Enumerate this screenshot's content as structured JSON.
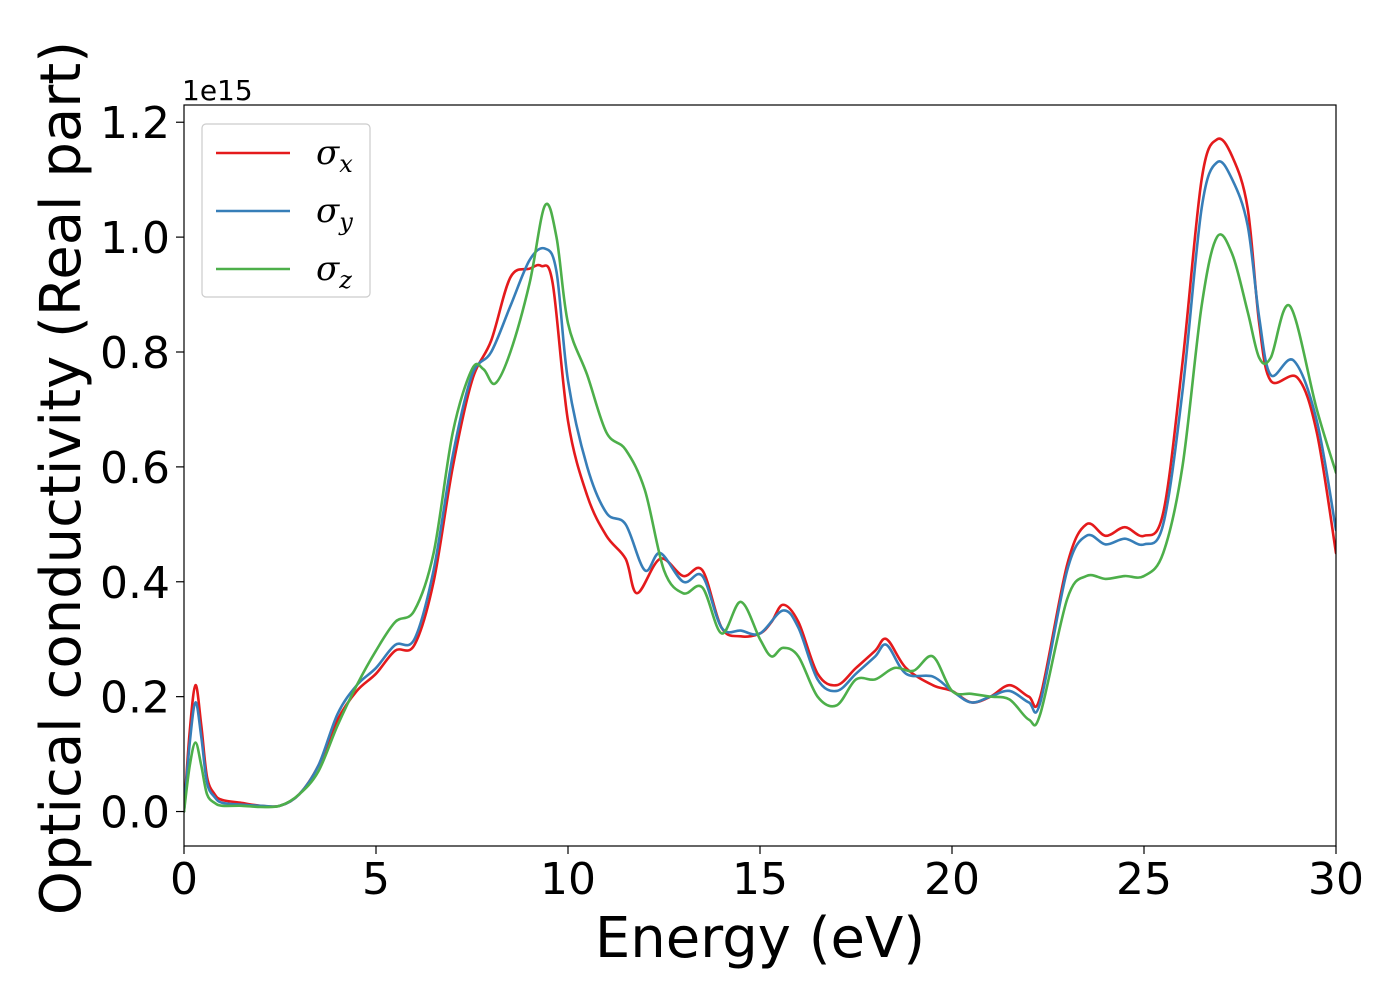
{
  "chart_data": {
    "type": "line",
    "title": "",
    "xlabel": "Energy (eV)",
    "ylabel": "Optical conductivity (Real part)",
    "y_offset_label": "1e15",
    "xlim": [
      0,
      30
    ],
    "ylim": [
      -0.06,
      1.23
    ],
    "xticks": [
      0,
      5,
      10,
      15,
      20,
      25,
      30
    ],
    "xtick_labels": [
      "0",
      "5",
      "10",
      "15",
      "20",
      "25",
      "30"
    ],
    "yticks": [
      0.0,
      0.2,
      0.4,
      0.6,
      0.8,
      1.0,
      1.2
    ],
    "ytick_labels": [
      "0.0",
      "0.2",
      "0.4",
      "0.6",
      "0.8",
      "1.0",
      "1.2"
    ],
    "grid": false,
    "legend_position": "top-left",
    "series": [
      {
        "name": "σx",
        "legend_base": "σ",
        "legend_sub": "x",
        "color": "#e41a1c",
        "points": [
          [
            0,
            0.0
          ],
          [
            0.15,
            0.14
          ],
          [
            0.3,
            0.22
          ],
          [
            0.45,
            0.15
          ],
          [
            0.6,
            0.06
          ],
          [
            0.8,
            0.03
          ],
          [
            1,
            0.02
          ],
          [
            1.5,
            0.015
          ],
          [
            2,
            0.01
          ],
          [
            2.5,
            0.01
          ],
          [
            3,
            0.03
          ],
          [
            3.5,
            0.08
          ],
          [
            4,
            0.16
          ],
          [
            4.5,
            0.21
          ],
          [
            5,
            0.24
          ],
          [
            5.5,
            0.28
          ],
          [
            6,
            0.29
          ],
          [
            6.5,
            0.4
          ],
          [
            7,
            0.6
          ],
          [
            7.5,
            0.75
          ],
          [
            8,
            0.82
          ],
          [
            8.5,
            0.93
          ],
          [
            9,
            0.945
          ],
          [
            9.3,
            0.95
          ],
          [
            9.6,
            0.92
          ],
          [
            10,
            0.68
          ],
          [
            10.5,
            0.55
          ],
          [
            11,
            0.48
          ],
          [
            11.5,
            0.44
          ],
          [
            11.8,
            0.38
          ],
          [
            12.4,
            0.44
          ],
          [
            13,
            0.41
          ],
          [
            13.5,
            0.42
          ],
          [
            14,
            0.32
          ],
          [
            14.5,
            0.305
          ],
          [
            15,
            0.31
          ],
          [
            15.3,
            0.33
          ],
          [
            15.6,
            0.36
          ],
          [
            16,
            0.33
          ],
          [
            16.5,
            0.24
          ],
          [
            17,
            0.22
          ],
          [
            17.5,
            0.25
          ],
          [
            18,
            0.28
          ],
          [
            18.3,
            0.3
          ],
          [
            18.8,
            0.25
          ],
          [
            19.5,
            0.22
          ],
          [
            20,
            0.21
          ],
          [
            20.5,
            0.19
          ],
          [
            21,
            0.2
          ],
          [
            21.5,
            0.22
          ],
          [
            22,
            0.2
          ],
          [
            22.3,
            0.2
          ],
          [
            23,
            0.43
          ],
          [
            23.5,
            0.5
          ],
          [
            24,
            0.48
          ],
          [
            24.5,
            0.495
          ],
          [
            25,
            0.48
          ],
          [
            25.5,
            0.52
          ],
          [
            26,
            0.78
          ],
          [
            26.5,
            1.1
          ],
          [
            26.9,
            1.17
          ],
          [
            27.3,
            1.14
          ],
          [
            27.7,
            1.05
          ],
          [
            28,
            0.85
          ],
          [
            28.3,
            0.75
          ],
          [
            29,
            0.755
          ],
          [
            29.5,
            0.66
          ],
          [
            30,
            0.45
          ]
        ]
      },
      {
        "name": "σy",
        "legend_base": "σ",
        "legend_sub": "y",
        "color": "#377eb8",
        "points": [
          [
            0,
            0.0
          ],
          [
            0.15,
            0.12
          ],
          [
            0.3,
            0.19
          ],
          [
            0.45,
            0.13
          ],
          [
            0.6,
            0.05
          ],
          [
            0.8,
            0.025
          ],
          [
            1,
            0.015
          ],
          [
            1.5,
            0.012
          ],
          [
            2,
            0.01
          ],
          [
            2.5,
            0.01
          ],
          [
            3,
            0.03
          ],
          [
            3.5,
            0.08
          ],
          [
            4,
            0.17
          ],
          [
            4.5,
            0.22
          ],
          [
            5,
            0.25
          ],
          [
            5.5,
            0.29
          ],
          [
            6,
            0.3
          ],
          [
            6.5,
            0.42
          ],
          [
            7,
            0.62
          ],
          [
            7.5,
            0.76
          ],
          [
            8,
            0.8
          ],
          [
            8.5,
            0.88
          ],
          [
            9,
            0.96
          ],
          [
            9.4,
            0.98
          ],
          [
            9.7,
            0.94
          ],
          [
            10,
            0.75
          ],
          [
            10.5,
            0.6
          ],
          [
            11,
            0.52
          ],
          [
            11.5,
            0.5
          ],
          [
            12,
            0.42
          ],
          [
            12.4,
            0.45
          ],
          [
            13,
            0.4
          ],
          [
            13.5,
            0.41
          ],
          [
            14,
            0.32
          ],
          [
            14.5,
            0.315
          ],
          [
            15,
            0.31
          ],
          [
            15.6,
            0.35
          ],
          [
            16,
            0.32
          ],
          [
            16.5,
            0.23
          ],
          [
            17,
            0.21
          ],
          [
            17.5,
            0.24
          ],
          [
            18,
            0.27
          ],
          [
            18.3,
            0.29
          ],
          [
            18.8,
            0.24
          ],
          [
            19.5,
            0.235
          ],
          [
            20,
            0.21
          ],
          [
            20.5,
            0.19
          ],
          [
            21,
            0.2
          ],
          [
            21.5,
            0.21
          ],
          [
            22,
            0.19
          ],
          [
            22.3,
            0.19
          ],
          [
            23,
            0.42
          ],
          [
            23.5,
            0.48
          ],
          [
            24,
            0.465
          ],
          [
            24.5,
            0.475
          ],
          [
            25,
            0.465
          ],
          [
            25.5,
            0.5
          ],
          [
            26,
            0.73
          ],
          [
            26.5,
            1.05
          ],
          [
            26.9,
            1.13
          ],
          [
            27.3,
            1.1
          ],
          [
            27.7,
            1.02
          ],
          [
            28,
            0.86
          ],
          [
            28.3,
            0.76
          ],
          [
            28.9,
            0.785
          ],
          [
            29.5,
            0.68
          ],
          [
            30,
            0.49
          ]
        ]
      },
      {
        "name": "σz",
        "legend_base": "σ",
        "legend_sub": "z",
        "color": "#4daf4a",
        "points": [
          [
            0,
            0.0
          ],
          [
            0.15,
            0.08
          ],
          [
            0.3,
            0.12
          ],
          [
            0.45,
            0.08
          ],
          [
            0.6,
            0.03
          ],
          [
            0.8,
            0.015
          ],
          [
            1,
            0.01
          ],
          [
            1.5,
            0.01
          ],
          [
            2,
            0.008
          ],
          [
            2.5,
            0.01
          ],
          [
            3,
            0.03
          ],
          [
            3.5,
            0.07
          ],
          [
            4,
            0.15
          ],
          [
            4.5,
            0.22
          ],
          [
            5,
            0.28
          ],
          [
            5.5,
            0.33
          ],
          [
            6,
            0.35
          ],
          [
            6.5,
            0.45
          ],
          [
            7,
            0.66
          ],
          [
            7.5,
            0.77
          ],
          [
            7.8,
            0.77
          ],
          [
            8.1,
            0.745
          ],
          [
            8.5,
            0.8
          ],
          [
            9,
            0.92
          ],
          [
            9.4,
            1.055
          ],
          [
            9.7,
            1.0
          ],
          [
            10,
            0.85
          ],
          [
            10.5,
            0.76
          ],
          [
            11,
            0.66
          ],
          [
            11.5,
            0.63
          ],
          [
            12,
            0.56
          ],
          [
            12.5,
            0.42
          ],
          [
            13,
            0.38
          ],
          [
            13.5,
            0.39
          ],
          [
            14,
            0.31
          ],
          [
            14.5,
            0.365
          ],
          [
            15,
            0.3
          ],
          [
            15.3,
            0.27
          ],
          [
            15.6,
            0.285
          ],
          [
            16,
            0.27
          ],
          [
            16.5,
            0.2
          ],
          [
            17,
            0.185
          ],
          [
            17.5,
            0.23
          ],
          [
            18,
            0.23
          ],
          [
            18.5,
            0.25
          ],
          [
            19,
            0.245
          ],
          [
            19.5,
            0.27
          ],
          [
            20,
            0.21
          ],
          [
            20.5,
            0.205
          ],
          [
            21,
            0.2
          ],
          [
            21.5,
            0.195
          ],
          [
            22,
            0.16
          ],
          [
            22.3,
            0.17
          ],
          [
            23,
            0.37
          ],
          [
            23.5,
            0.41
          ],
          [
            24,
            0.405
          ],
          [
            24.5,
            0.41
          ],
          [
            25,
            0.41
          ],
          [
            25.5,
            0.45
          ],
          [
            26,
            0.6
          ],
          [
            26.5,
            0.88
          ],
          [
            26.9,
            1.0
          ],
          [
            27.3,
            0.97
          ],
          [
            27.7,
            0.87
          ],
          [
            28,
            0.79
          ],
          [
            28.3,
            0.79
          ],
          [
            28.8,
            0.88
          ],
          [
            29.5,
            0.7
          ],
          [
            30,
            0.59
          ]
        ]
      }
    ]
  }
}
